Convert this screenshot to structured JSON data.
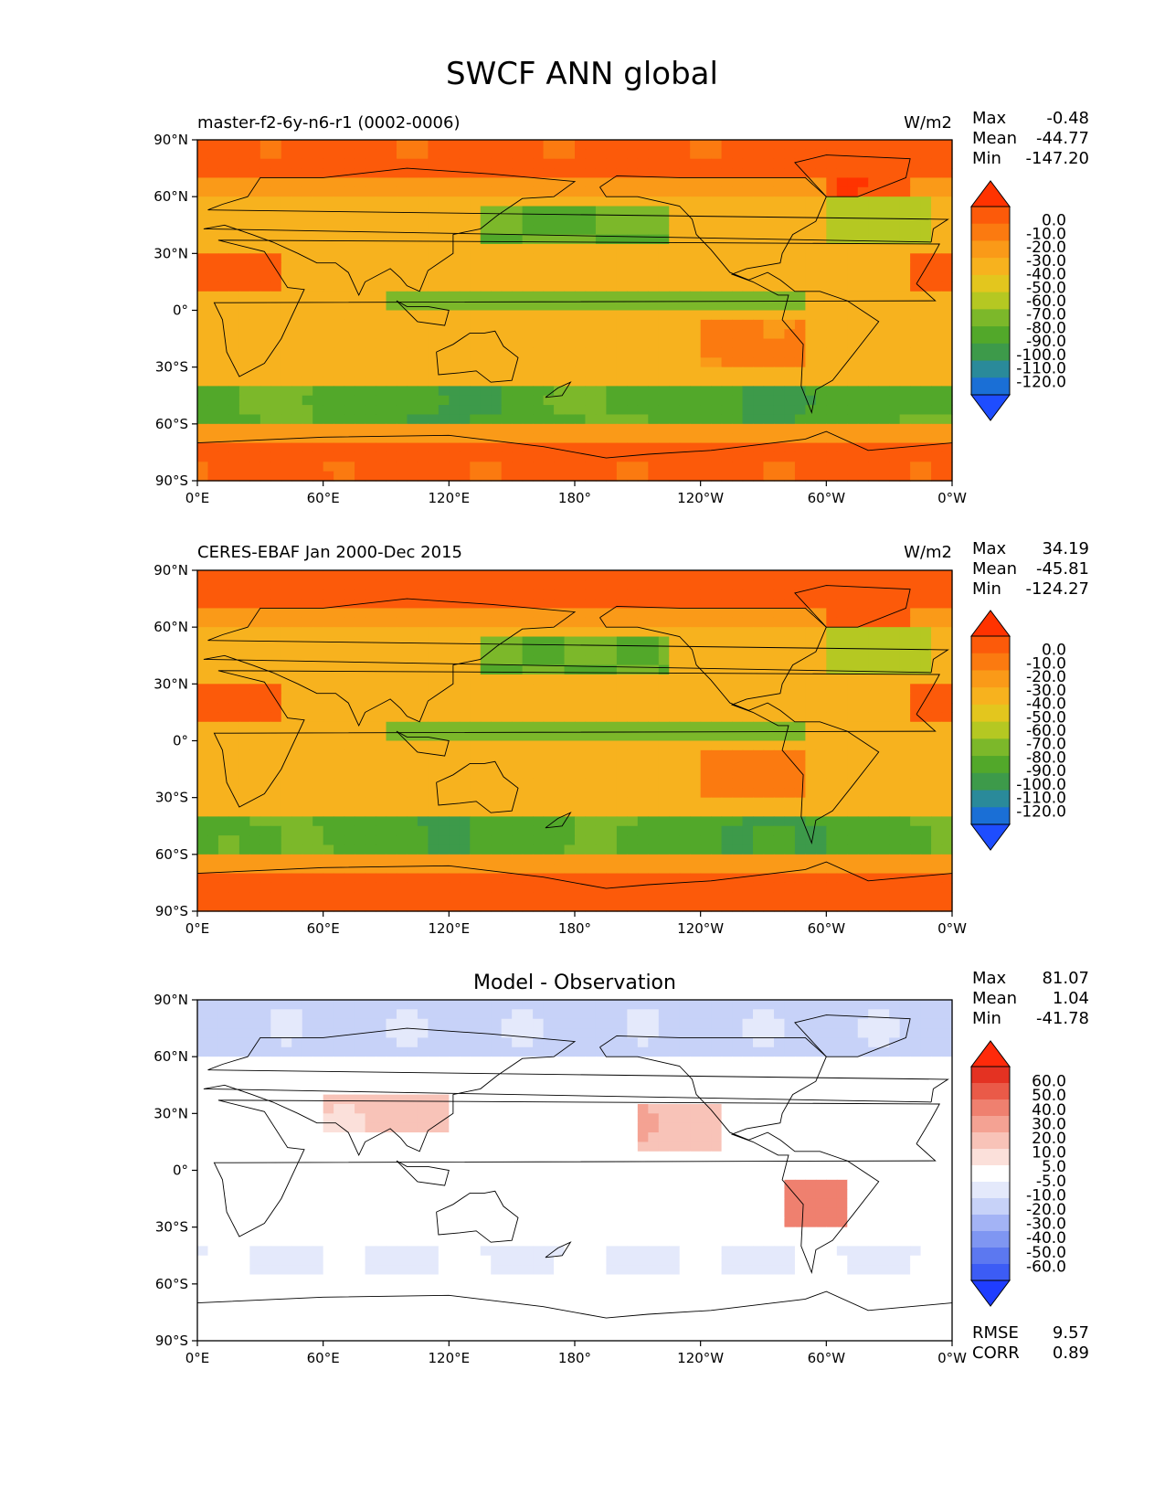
{
  "figure": {
    "title": "SWCF ANN global"
  },
  "lon_ticks": [
    "0°E",
    "60°E",
    "120°E",
    "180°",
    "120°W",
    "60°W",
    "0°W"
  ],
  "lat_ticks": [
    "90°N",
    "60°N",
    "30°N",
    "0°",
    "30°S",
    "60°S",
    "90°S"
  ],
  "colors": {
    "field_scale": [
      "#1e4dff",
      "#1a6fd6",
      "#2a8a9a",
      "#3d9a4a",
      "#52a82a",
      "#7cb82a",
      "#b5c822",
      "#e3c61e",
      "#f7b21e",
      "#fa9a18",
      "#fb7a10",
      "#fc5a0a",
      "#ff3300"
    ],
    "diff_scale": [
      "#1f3dff",
      "#3c5cf5",
      "#5c78f0",
      "#7f96f2",
      "#a3b3f5",
      "#c7d2f8",
      "#e4e9fb",
      "#ffffff",
      "#fbe0da",
      "#f8c3b8",
      "#f4a293",
      "#ef806f",
      "#ea5a48",
      "#e43222",
      "#ff2a0a"
    ]
  },
  "chart_data": [
    {
      "type": "heatmap",
      "title": "master-f2-6y-n6-r1 (0002-0006)",
      "units": "W/m2",
      "stats": {
        "max_label": "Max",
        "max": "-0.48",
        "mean_label": "Mean",
        "mean": "-44.77",
        "min_label": "Min",
        "min": "-147.20"
      },
      "colorbar_levels": [
        "0.0",
        "-10.0",
        "-20.0",
        "-30.0",
        "-40.0",
        "-50.0",
        "-60.0",
        "-70.0",
        "-80.0",
        "-90.0",
        "-100.0",
        "-110.0",
        "-120.0"
      ],
      "xlim": [
        0,
        360
      ],
      "ylim": [
        -90,
        90
      ]
    },
    {
      "type": "heatmap",
      "title": "CERES-EBAF Jan 2000-Dec 2015",
      "units": "W/m2",
      "stats": {
        "max_label": "Max",
        "max": "34.19",
        "mean_label": "Mean",
        "mean": "-45.81",
        "min_label": "Min",
        "min": "-124.27"
      },
      "colorbar_levels": [
        "0.0",
        "-10.0",
        "-20.0",
        "-30.0",
        "-40.0",
        "-50.0",
        "-60.0",
        "-70.0",
        "-80.0",
        "-90.0",
        "-100.0",
        "-110.0",
        "-120.0"
      ],
      "xlim": [
        0,
        360
      ],
      "ylim": [
        -90,
        90
      ]
    },
    {
      "type": "heatmap",
      "title": "Model - Observation",
      "units": "",
      "stats": {
        "max_label": "Max",
        "max": "81.07",
        "mean_label": "Mean",
        "mean": "1.04",
        "min_label": "Min",
        "min": "-41.78"
      },
      "colorbar_levels": [
        "60.0",
        "50.0",
        "40.0",
        "30.0",
        "20.0",
        "10.0",
        "5.0",
        "-5.0",
        "-10.0",
        "-20.0",
        "-30.0",
        "-40.0",
        "-50.0",
        "-60.0"
      ],
      "xlim": [
        0,
        360
      ],
      "ylim": [
        -90,
        90
      ],
      "rmse_label": "RMSE",
      "rmse": "9.57",
      "corr_label": "CORR",
      "corr": "0.89"
    }
  ]
}
